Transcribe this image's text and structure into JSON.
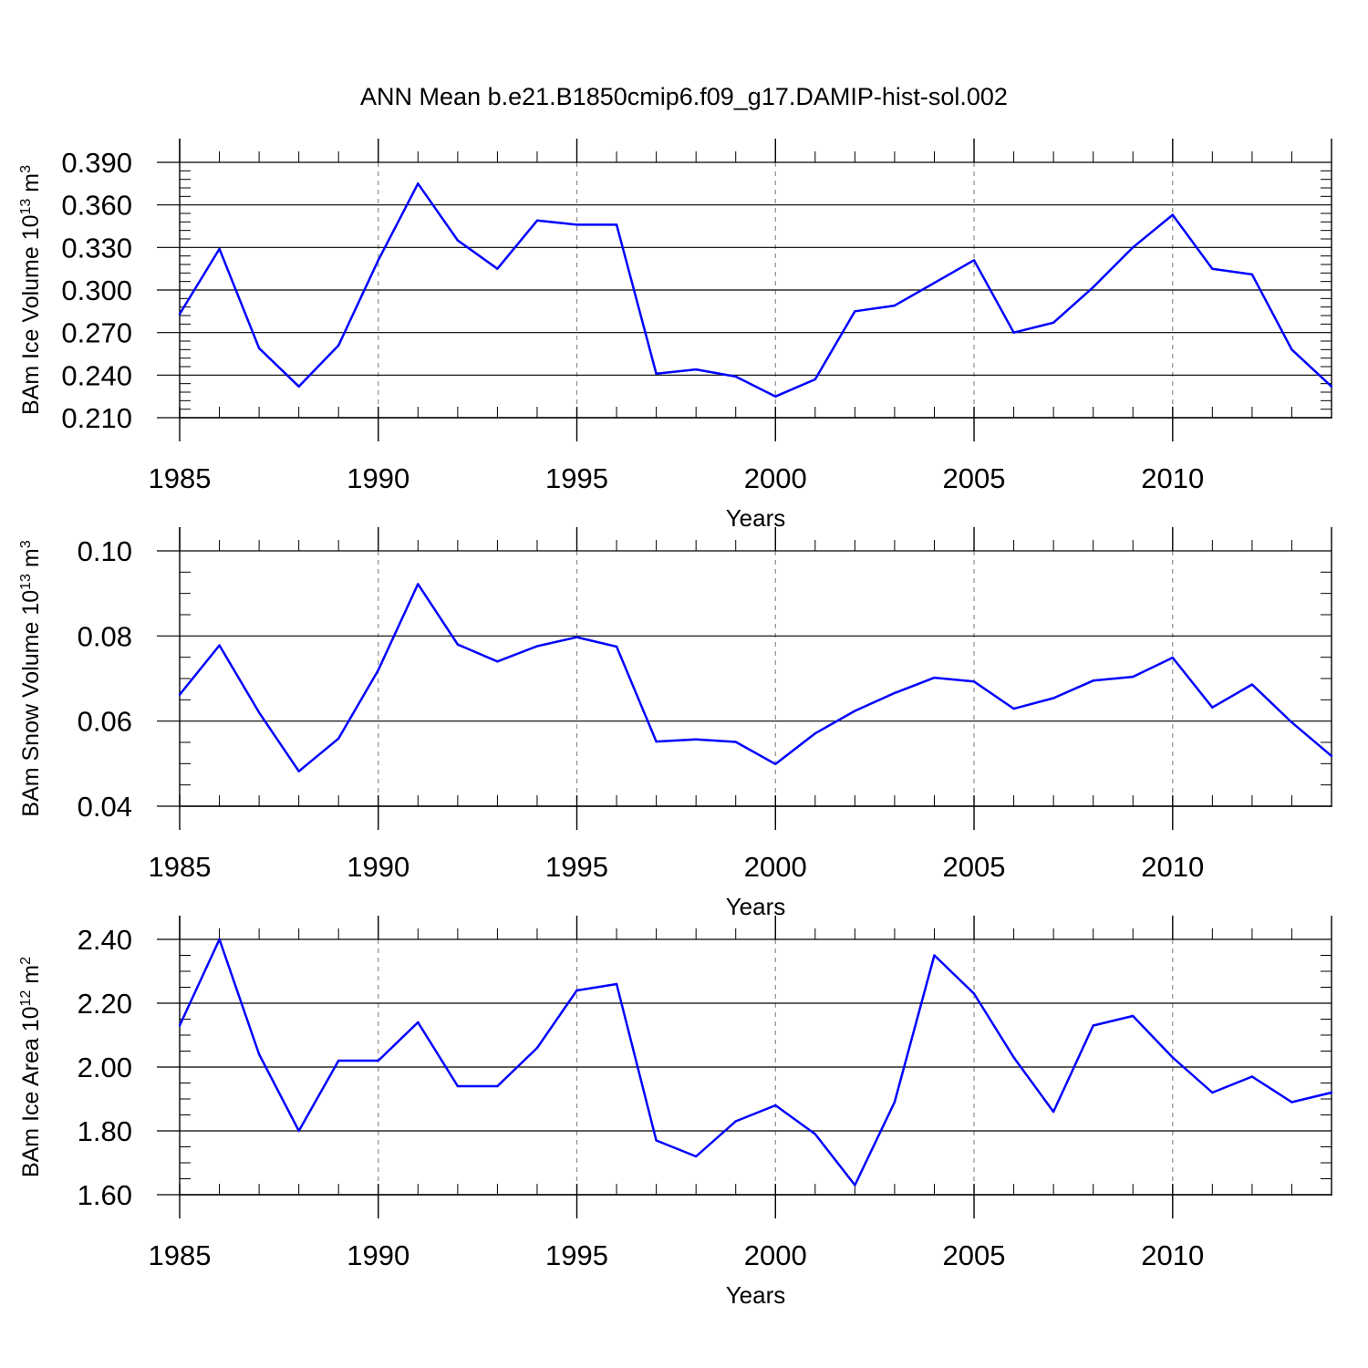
{
  "figure": {
    "title": "ANN Mean b.e21.B1850cmip6.f09_g17.DAMIP-hist-sol.002",
    "line_color": "#0000ff",
    "axis_color": "#000000",
    "grid_color": "#8c8c8c"
  },
  "chart_data": [
    {
      "type": "line",
      "ylabel": {
        "main": "BAm Ice Volume 10",
        "exp": "13",
        "unit": " m",
        "unit_exp": "3"
      },
      "xlabel": "Years",
      "xlim": [
        1985,
        2014
      ],
      "xticks": [
        1985,
        1990,
        1995,
        2000,
        2005,
        2010
      ],
      "xtick_labels": [
        "1985",
        "1990",
        "1995",
        "2000",
        "2005",
        "2010"
      ],
      "ylim": [
        0.21,
        0.39
      ],
      "yticks": [
        0.21,
        0.24,
        0.27,
        0.3,
        0.33,
        0.36,
        0.39
      ],
      "ytick_labels": [
        "0.210",
        "0.240",
        "0.270",
        "0.300",
        "0.330",
        "0.360",
        "0.390"
      ],
      "yminor_step": 0.006,
      "x": [
        1985,
        1986,
        1987,
        1988,
        1989,
        1990,
        1991,
        1992,
        1993,
        1994,
        1995,
        1996,
        1997,
        1998,
        1999,
        2000,
        2001,
        2002,
        2003,
        2004,
        2005,
        2006,
        2007,
        2008,
        2009,
        2010,
        2011,
        2012,
        2013,
        2014
      ],
      "series": [
        {
          "name": "Ice Volume",
          "values": [
            0.283,
            0.329,
            0.259,
            0.232,
            0.261,
            0.321,
            0.375,
            0.335,
            0.315,
            0.349,
            0.346,
            0.346,
            0.241,
            0.244,
            0.239,
            0.225,
            0.237,
            0.285,
            0.289,
            0.305,
            0.321,
            0.27,
            0.277,
            0.302,
            0.33,
            0.353,
            0.315,
            0.311,
            0.258,
            0.232
          ]
        }
      ]
    },
    {
      "type": "line",
      "ylabel": {
        "main": "BAm Snow Volume 10",
        "exp": "13",
        "unit": " m",
        "unit_exp": "3"
      },
      "xlabel": "Years",
      "xlim": [
        1985,
        2014
      ],
      "xticks": [
        1985,
        1990,
        1995,
        2000,
        2005,
        2010
      ],
      "xtick_labels": [
        "1985",
        "1990",
        "1995",
        "2000",
        "2005",
        "2010"
      ],
      "ylim": [
        0.04,
        0.1
      ],
      "yticks": [
        0.04,
        0.06,
        0.08,
        0.1
      ],
      "ytick_labels": [
        "0.04",
        "0.06",
        "0.08",
        "0.10"
      ],
      "yminor_step": 0.005,
      "x": [
        1985,
        1986,
        1987,
        1988,
        1989,
        1990,
        1991,
        1992,
        1993,
        1994,
        1995,
        1996,
        1997,
        1998,
        1999,
        2000,
        2001,
        2002,
        2003,
        2004,
        2005,
        2006,
        2007,
        2008,
        2009,
        2010,
        2011,
        2012,
        2013,
        2014
      ],
      "series": [
        {
          "name": "Snow Volume",
          "values": [
            0.0662,
            0.0778,
            0.062,
            0.0482,
            0.0559,
            0.072,
            0.0922,
            0.078,
            0.074,
            0.0776,
            0.0797,
            0.0775,
            0.0552,
            0.0557,
            0.0551,
            0.0499,
            0.0571,
            0.0624,
            0.0666,
            0.0702,
            0.0693,
            0.0629,
            0.0654,
            0.0695,
            0.0704,
            0.0749,
            0.0632,
            0.0686,
            0.0597,
            0.0518
          ]
        }
      ]
    },
    {
      "type": "line",
      "ylabel": {
        "main": "BAm Ice Area 10",
        "exp": "12",
        "unit": " m",
        "unit_exp": "2"
      },
      "xlabel": "Years",
      "xlim": [
        1985,
        2014
      ],
      "xticks": [
        1985,
        1990,
        1995,
        2000,
        2005,
        2010
      ],
      "xtick_labels": [
        "1985",
        "1990",
        "1995",
        "2000",
        "2005",
        "2010"
      ],
      "ylim": [
        1.6,
        2.4
      ],
      "yticks": [
        1.6,
        1.8,
        2.0,
        2.2,
        2.4
      ],
      "ytick_labels": [
        "1.60",
        "1.80",
        "2.00",
        "2.20",
        "2.40"
      ],
      "yminor_step": 0.05,
      "x": [
        1985,
        1986,
        1987,
        1988,
        1989,
        1990,
        1991,
        1992,
        1993,
        1994,
        1995,
        1996,
        1997,
        1998,
        1999,
        2000,
        2001,
        2002,
        2003,
        2004,
        2005,
        2006,
        2007,
        2008,
        2009,
        2010,
        2011,
        2012,
        2013,
        2014
      ],
      "series": [
        {
          "name": "Ice Area",
          "values": [
            2.13,
            2.4,
            2.04,
            1.8,
            2.02,
            2.02,
            2.14,
            1.94,
            1.94,
            2.06,
            2.24,
            2.26,
            1.77,
            1.72,
            1.83,
            1.88,
            1.79,
            1.63,
            1.89,
            2.35,
            2.23,
            2.03,
            1.86,
            2.13,
            2.16,
            2.03,
            1.92,
            1.97,
            1.89,
            1.92
          ]
        }
      ]
    }
  ]
}
